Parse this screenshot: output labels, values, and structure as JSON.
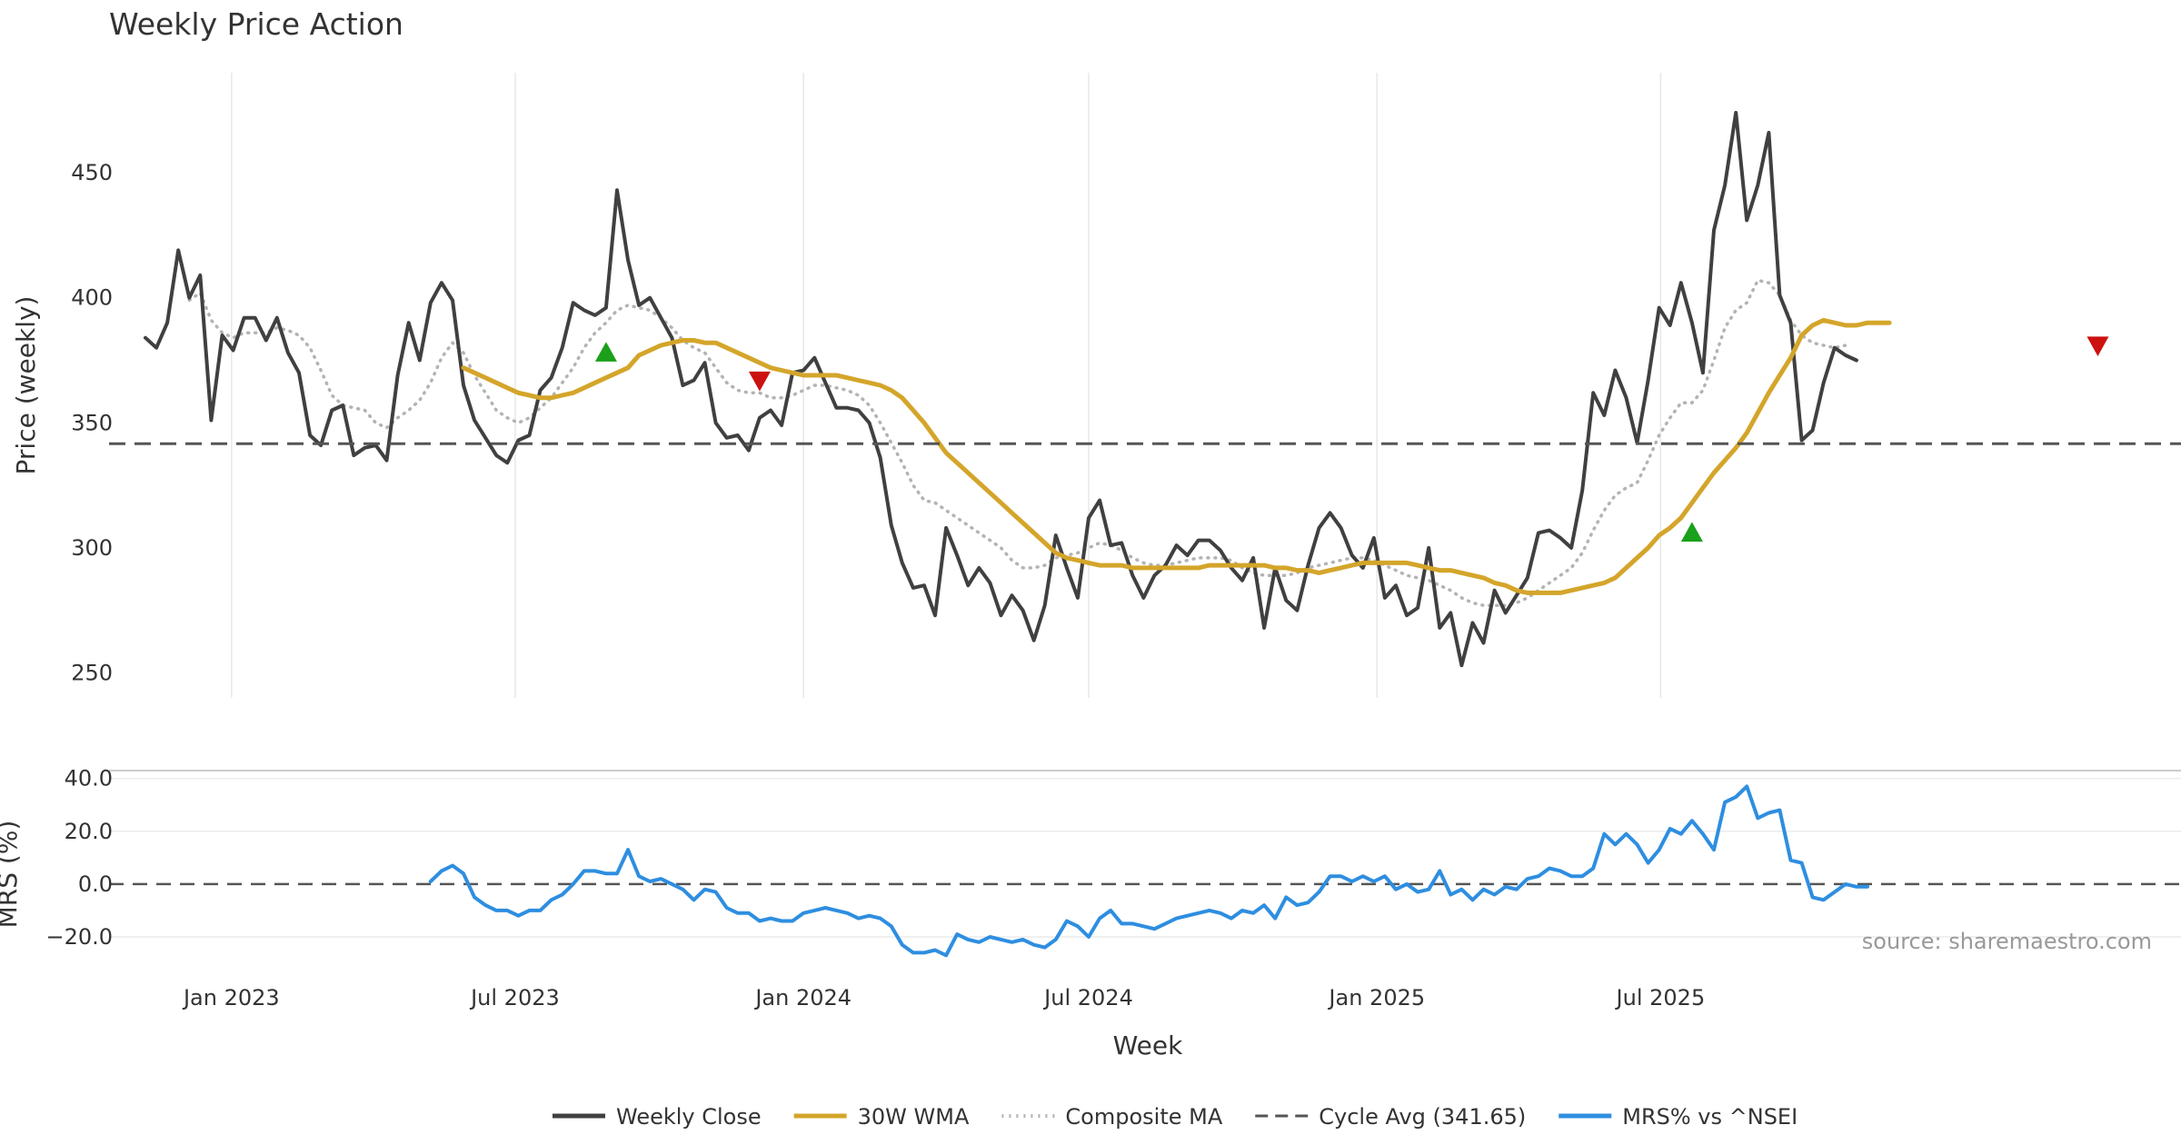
{
  "chart_data": [
    {
      "type": "line",
      "title": "Weekly Price Action",
      "ylabel": "Price (weekly)",
      "xlabel": "Week",
      "ylim": [
        240,
        490
      ],
      "yticks": [
        250,
        300,
        350,
        400,
        450
      ],
      "x_start": "2022-11-07",
      "x_ticks": [
        {
          "date": "2023-01-01",
          "label": "Jan 2023"
        },
        {
          "date": "2023-07-01",
          "label": "Jul 2023"
        },
        {
          "date": "2024-01-01",
          "label": "Jan 2024"
        },
        {
          "date": "2024-07-01",
          "label": "Jul 2024"
        },
        {
          "date": "2025-01-01",
          "label": "Jan 2025"
        },
        {
          "date": "2025-07-01",
          "label": "Jul 2025"
        }
      ],
      "series": [
        {
          "name": "Weekly Close",
          "color": "#404040",
          "values": [
            384,
            380,
            390,
            419,
            400,
            409,
            351,
            385,
            379,
            392,
            392,
            383,
            392,
            378,
            370,
            345,
            341,
            355,
            357,
            337,
            340,
            341,
            335,
            369,
            390,
            375,
            398,
            406,
            399,
            365,
            351,
            344,
            337,
            334,
            343,
            345,
            363,
            368,
            380,
            398,
            395,
            393,
            396,
            443,
            415,
            397,
            400,
            392,
            384,
            365,
            367,
            374,
            350,
            344,
            345,
            339,
            352,
            355,
            349,
            370,
            371,
            376,
            366,
            356,
            356,
            355,
            350,
            336,
            309,
            294,
            284,
            285,
            273,
            308,
            297,
            285,
            292,
            286,
            273,
            281,
            275,
            263,
            277,
            305,
            292,
            280,
            312,
            319,
            301,
            302,
            289,
            280,
            289,
            293,
            301,
            297,
            303,
            303,
            299,
            292,
            287,
            296,
            268,
            292,
            279,
            275,
            293,
            308,
            314,
            308,
            297,
            292,
            304,
            280,
            285,
            273,
            276,
            300,
            268,
            274,
            253,
            270,
            262,
            283,
            274,
            281,
            288,
            306,
            307,
            304,
            300,
            323,
            362,
            353,
            371,
            360,
            342,
            367,
            396,
            389,
            406,
            390,
            370,
            427,
            445,
            474,
            431,
            445,
            466,
            401,
            390,
            343,
            347,
            366,
            380,
            377,
            375
          ]
        },
        {
          "name": "30W WMA",
          "color": "#d4a52a",
          "start_index": 29,
          "values": [
            372,
            370,
            368,
            366,
            364,
            362,
            361,
            360,
            360,
            361,
            362,
            364,
            366,
            368,
            370,
            372,
            377,
            379,
            381,
            382,
            383,
            383,
            382,
            382,
            380,
            378,
            376,
            374,
            372,
            371,
            370,
            369,
            369,
            369,
            369,
            368,
            367,
            366,
            365,
            363,
            360,
            355,
            350,
            344,
            338,
            334,
            330,
            326,
            322,
            318,
            314,
            310,
            306,
            302,
            298,
            296,
            295,
            294,
            293,
            293,
            293,
            292,
            292,
            292,
            292,
            292,
            292,
            292,
            293,
            293,
            293,
            293,
            293,
            293,
            292,
            292,
            291,
            291,
            290,
            291,
            292,
            293,
            294,
            294,
            294,
            294,
            294,
            293,
            292,
            291,
            291,
            290,
            289,
            288,
            286,
            285,
            283,
            282,
            282,
            282,
            282,
            283,
            284,
            285,
            286,
            288,
            292,
            296,
            300,
            305,
            308,
            312,
            318,
            324,
            330,
            335,
            340,
            346,
            354,
            362,
            369,
            376,
            385,
            389,
            391,
            390,
            389,
            389,
            390,
            390,
            390
          ]
        },
        {
          "name": "Composite MA",
          "color": "#b3b3b3",
          "style": "dotted",
          "values": [
            null,
            null,
            null,
            null,
            399,
            402,
            391,
            386,
            384,
            386,
            386,
            386,
            388,
            387,
            385,
            380,
            371,
            361,
            357,
            356,
            355,
            350,
            348,
            352,
            355,
            359,
            366,
            376,
            382,
            378,
            369,
            362,
            355,
            352,
            350,
            352,
            356,
            360,
            366,
            372,
            380,
            386,
            390,
            395,
            397,
            396,
            395,
            392,
            388,
            383,
            380,
            378,
            372,
            366,
            363,
            362,
            362,
            360,
            360,
            361,
            363,
            365,
            365,
            364,
            363,
            361,
            357,
            350,
            342,
            334,
            325,
            319,
            318,
            315,
            312,
            309,
            306,
            303,
            300,
            295,
            292,
            292,
            293,
            296,
            297,
            298,
            300,
            302,
            301,
            299,
            296,
            294,
            293,
            293,
            294,
            295,
            296,
            296,
            296,
            295,
            292,
            290,
            289,
            289,
            289,
            290,
            292,
            293,
            294,
            295,
            296,
            296,
            295,
            293,
            291,
            289,
            288,
            287,
            285,
            283,
            280,
            278,
            277,
            277,
            277,
            278,
            280,
            283,
            286,
            289,
            292,
            298,
            307,
            315,
            321,
            324,
            326,
            335,
            345,
            352,
            358,
            358,
            363,
            375,
            388,
            395,
            398,
            407,
            406,
            401,
            391,
            385,
            382,
            381,
            380,
            381
          ]
        },
        {
          "name": "Cycle Avg (341.65)",
          "color": "#555555",
          "style": "dashed",
          "value": 341.65
        }
      ],
      "annotations": [
        {
          "type": "buy-signal",
          "color": "#1aa01a",
          "week_index": 42,
          "price": 378
        },
        {
          "type": "sell-signal",
          "color": "#cc1111",
          "week_index": 56,
          "price": 367
        },
        {
          "type": "buy-signal",
          "color": "#1aa01a",
          "week_index": 141,
          "price": 306
        },
        {
          "type": "sell-signal",
          "color": "#cc1111",
          "week_index": 178,
          "price": 381
        }
      ]
    },
    {
      "type": "line",
      "ylabel": "MRS (%)",
      "ylim": [
        -30,
        43
      ],
      "yticks": [
        40.0,
        20.0,
        0.0,
        -20.0
      ],
      "ytick_labels": [
        "40.0",
        "20.0",
        "0.0",
        "−20.0"
      ],
      "zero_line": true,
      "series": [
        {
          "name": "MRS% vs ^NSEI",
          "color": "#2e8ee0",
          "start_index": 26,
          "values": [
            1,
            5,
            7,
            4,
            -5,
            -8,
            -10,
            -10,
            -12,
            -10,
            -10,
            -6,
            -4,
            0,
            5,
            5,
            4,
            4,
            13,
            3,
            1,
            2,
            0,
            -2,
            -6,
            -2,
            -3,
            -9,
            -11,
            -11,
            -14,
            -13,
            -14,
            -14,
            -11,
            -10,
            -9,
            -10,
            -11,
            -13,
            -12,
            -13,
            -16,
            -23,
            -26,
            -26,
            -25,
            -27,
            -19,
            -21,
            -22,
            -20,
            -21,
            -22,
            -21,
            -23,
            -24,
            -21,
            -14,
            -16,
            -20,
            -13,
            -10,
            -15,
            -15,
            -16,
            -17,
            -15,
            -13,
            -12,
            -11,
            -10,
            -11,
            -13,
            -10,
            -11,
            -8,
            -13,
            -5,
            -8,
            -7,
            -3,
            3,
            3,
            1,
            3,
            1,
            3,
            -2,
            0,
            -3,
            -2,
            5,
            -4,
            -2,
            -6,
            -2,
            -4,
            -1,
            -2,
            2,
            3,
            6,
            5,
            3,
            3,
            6,
            19,
            15,
            19,
            15,
            8,
            13,
            21,
            19,
            24,
            19,
            13,
            31,
            33,
            37,
            25,
            27,
            28,
            9,
            8,
            -5,
            -6,
            -3,
            0,
            -1,
            -1
          ]
        }
      ],
      "annotations": [
        {
          "text": "source: sharemaestro.com"
        }
      ]
    }
  ]
}
